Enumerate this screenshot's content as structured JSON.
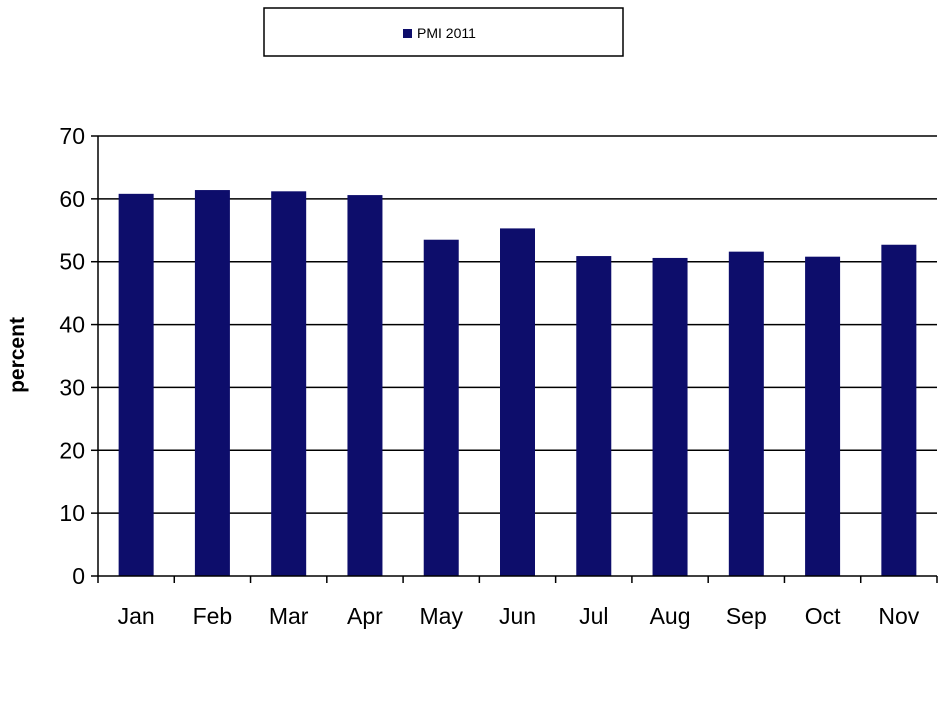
{
  "chart_data": {
    "type": "bar",
    "title": "",
    "xlabel": "",
    "ylabel": "percent",
    "ylim": [
      0,
      70
    ],
    "yticks": [
      0,
      10,
      20,
      30,
      40,
      50,
      60,
      70
    ],
    "grid": true,
    "legend_position": "top",
    "categories": [
      "Jan",
      "Feb",
      "Mar",
      "Apr",
      "May",
      "Jun",
      "Jul",
      "Aug",
      "Sep",
      "Oct",
      "Nov"
    ],
    "series": [
      {
        "name": "PMI 2011",
        "color": "#0d0d6b",
        "values": [
          60.8,
          61.4,
          61.2,
          60.6,
          53.5,
          55.3,
          50.9,
          50.6,
          51.6,
          50.8,
          52.7
        ]
      }
    ]
  }
}
